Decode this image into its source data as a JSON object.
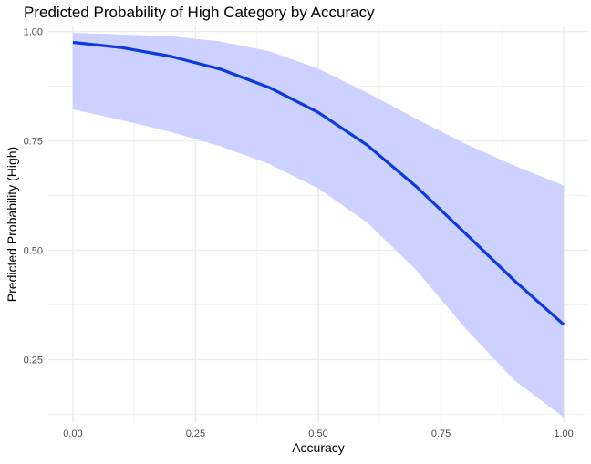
{
  "chart_data": {
    "type": "line",
    "title": "Predicted Probability of High Category by Accuracy",
    "xlabel": "Accuracy",
    "ylabel": "Predicted Probability (High)",
    "xlim": [
      -0.05,
      1.05
    ],
    "ylim": [
      0.105,
      1.0115
    ],
    "x_ticks": [
      0.0,
      0.25,
      0.5,
      0.75,
      1.0
    ],
    "x_tick_labels": [
      "0.00",
      "0.25",
      "0.50",
      "0.75",
      "1.00"
    ],
    "y_ticks": [
      0.25,
      0.5,
      0.75,
      1.0
    ],
    "y_tick_labels": [
      "0.25",
      "0.50",
      "0.75",
      "1.00"
    ],
    "grid": true,
    "legend": "none",
    "series": [
      {
        "x": [
          0.0,
          0.1,
          0.2,
          0.3,
          0.4,
          0.5,
          0.6,
          0.7,
          0.8,
          0.9,
          1.0
        ],
        "y": [
          0.975,
          0.963,
          0.943,
          0.914,
          0.872,
          0.815,
          0.74,
          0.645,
          0.538,
          0.43,
          0.33
        ],
        "lower": [
          0.822,
          0.797,
          0.77,
          0.738,
          0.697,
          0.641,
          0.563,
          0.454,
          0.321,
          0.202,
          0.118
        ],
        "upper": [
          0.997,
          0.993,
          0.989,
          0.977,
          0.955,
          0.915,
          0.86,
          0.8,
          0.743,
          0.693,
          0.648
        ]
      }
    ],
    "colors": {
      "line": "#0a3ae0",
      "ribbon": "#cdd1ff",
      "grid_major": "#ebebeb",
      "grid_minor": "#f3f3f3"
    }
  }
}
